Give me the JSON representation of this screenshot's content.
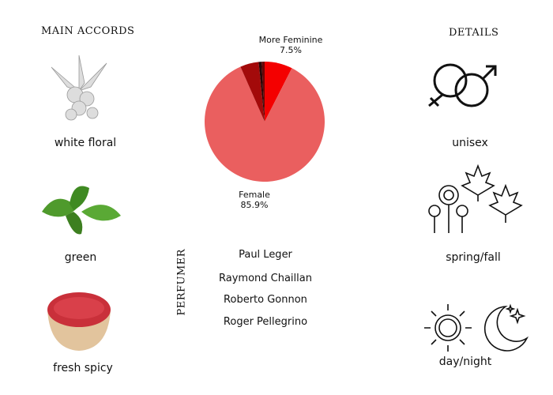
{
  "headers": {
    "main_accords": "MAIN ACCORDS",
    "details": "DETAILS",
    "perfumer": "PERFUMER"
  },
  "accords": [
    {
      "label": "white floral",
      "icon": "white-flower-icon"
    },
    {
      "label": "green",
      "icon": "basil-leaf-icon"
    },
    {
      "label": "fresh spicy",
      "icon": "pink-pepper-bowl-icon"
    }
  ],
  "details": [
    {
      "label": "unisex",
      "icon": "gender-symbols-icon"
    },
    {
      "label": "spring/fall",
      "icon": "flowers-and-leaves-icon"
    },
    {
      "label": "day/night",
      "icon": "sun-and-moon-icon"
    }
  ],
  "perfumers": [
    "Paul Leger",
    "Raymond Chaillan",
    "Roberto Gonnon",
    "Roger Pellegrino"
  ],
  "chart_data": {
    "type": "pie",
    "start": "top",
    "direction": "clockwise",
    "slices": [
      {
        "label": "More Feminine",
        "value": 7.5,
        "value_label": "7.5%",
        "color": "#f40000"
      },
      {
        "label": "Female",
        "value": 85.9,
        "value_label": "85.9%",
        "color": "#ea5f5f"
      },
      {
        "value": 5.0,
        "color": "#a30a0a"
      },
      {
        "value": 0.8,
        "color": "#2a0505"
      },
      {
        "value": 0.8,
        "color": "#6a0505"
      }
    ]
  }
}
